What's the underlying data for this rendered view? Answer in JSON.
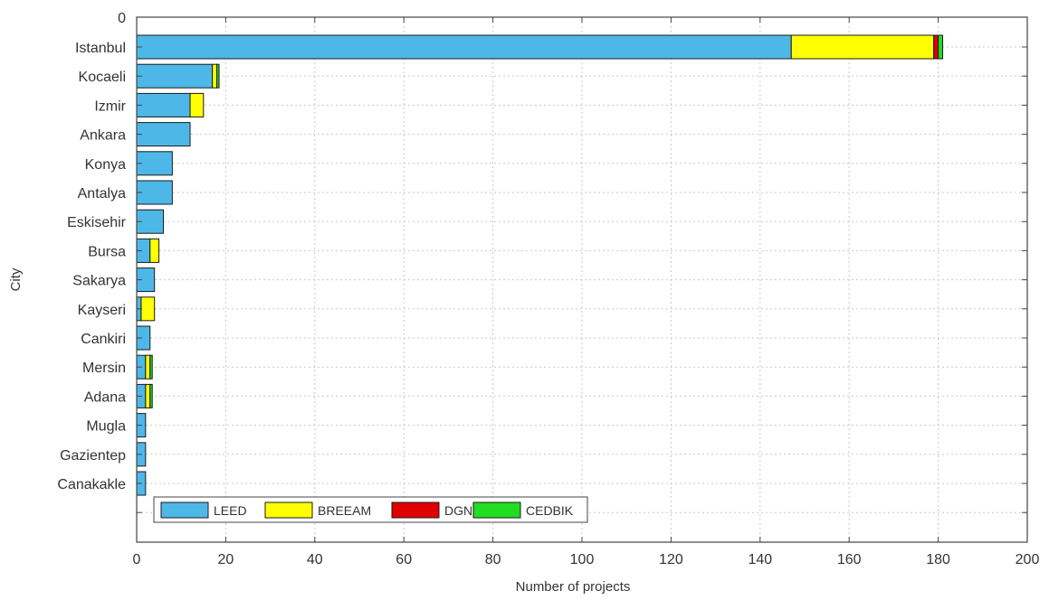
{
  "chart_data": {
    "type": "bar",
    "orientation": "horizontal",
    "stacked": true,
    "title": "",
    "xlabel": "Number of projects",
    "ylabel": "City",
    "xlim": [
      0,
      200
    ],
    "xticks": [
      0,
      20,
      40,
      60,
      80,
      100,
      120,
      140,
      160,
      180,
      200
    ],
    "ytop_tick": "0",
    "grid": true,
    "legend_position": "bottom-left",
    "legend_orientation": "horizontal",
    "categories": [
      "Istanbul",
      "Kocaeli",
      "Izmir",
      "Ankara",
      "Konya",
      "Antalya",
      "Eskisehir",
      "Bursa",
      "Sakarya",
      "Kayseri",
      "Cankiri",
      "Mersin",
      "Adana",
      "Mugla",
      "Gazientep",
      "Canakakle"
    ],
    "series": [
      {
        "name": "LEED",
        "color": "#4db8e8",
        "values": [
          147,
          17,
          12,
          12,
          8,
          8,
          6,
          3,
          4,
          1,
          3,
          2,
          2,
          2,
          2,
          2
        ]
      },
      {
        "name": "BREEAM",
        "color": "#ffff00",
        "values": [
          32,
          1,
          3,
          0,
          0,
          0,
          0,
          2,
          0,
          3,
          0,
          1,
          1,
          0,
          0,
          0
        ]
      },
      {
        "name": "DGNB",
        "color": "#e00000",
        "values": [
          1,
          0,
          0,
          0,
          0,
          0,
          0,
          0,
          0,
          0,
          0,
          0,
          0,
          0,
          0,
          0
        ]
      },
      {
        "name": "CEDBIK",
        "color": "#22dd22",
        "values": [
          1,
          0.5,
          0,
          0,
          0,
          0,
          0,
          0,
          0,
          0,
          0,
          0.5,
          0.5,
          0,
          0,
          0
        ]
      }
    ]
  }
}
